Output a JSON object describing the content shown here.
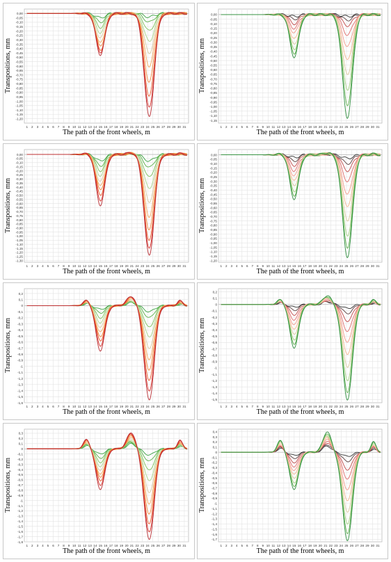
{
  "layout_note": "",
  "chart_data": [
    {
      "type": "line",
      "xlabel": "The path of the front wheels, m",
      "ylabel": "Transpositions, mm",
      "x_ticks": [
        "1",
        "2",
        "3",
        "4",
        "5",
        "6",
        "7",
        "8",
        "9",
        "10",
        "11",
        "12",
        "13",
        "14",
        "15",
        "16",
        "17",
        "18",
        "19",
        "20",
        "21",
        "22",
        "23",
        "24",
        "25",
        "26",
        "27",
        "28",
        "29",
        "30",
        "31"
      ],
      "ylim": [
        -1.25,
        0.05
      ],
      "y_ticks": [
        "0,00",
        "-0,05",
        "-0,10",
        "-0,15",
        "-0,20",
        "-0,25",
        "-0,30",
        "-0,35",
        "-0,40",
        "-0,45",
        "-0,50",
        "-0,55",
        "-0,60",
        "-0,65",
        "-0,70",
        "-0,75",
        "-0,80",
        "-0,85",
        "-0,90",
        "-0,95",
        "-1,00",
        "-1,05",
        "-1,10",
        "-1,15",
        "-1,20"
      ],
      "dip1_x": 15,
      "dip2_x": 24.3,
      "dip1_depths": [
        -0.05,
        -0.1,
        -0.16,
        -0.22,
        -0.28,
        -0.34,
        -0.38,
        -0.42,
        -0.44,
        -0.47
      ],
      "dip2_depths": [
        -0.04,
        -0.1,
        -0.2,
        -0.32,
        -0.45,
        -0.6,
        -0.78,
        -0.95,
        -1.08,
        -1.18
      ],
      "hump": 0.0,
      "colors": [
        "#3aa142",
        "#58b048",
        "#7cc15a",
        "#a9d48a",
        "#d9c9a0",
        "#f3a95e",
        "#f08a3f",
        "#ea5a2a",
        "#d8302a",
        "#b82c32"
      ]
    },
    {
      "type": "line",
      "xlabel": "The path of the front wheels, m",
      "ylabel": "Transpositions, mm",
      "x_ticks": [
        "1",
        "2",
        "3",
        "4",
        "5",
        "6",
        "7",
        "8",
        "9",
        "10",
        "11",
        "12",
        "13",
        "14",
        "15",
        "16",
        "17",
        "18",
        "19",
        "20",
        "21",
        "22",
        "23",
        "24",
        "25",
        "26",
        "27",
        "28",
        "29",
        "30",
        "31"
      ],
      "ylim": [
        -1.18,
        0.06
      ],
      "y_ticks": [
        "0,00",
        "-0,05",
        "-0,10",
        "-0,15",
        "-0,20",
        "-0,25",
        "-0,30",
        "-0,35",
        "-0,40",
        "-0,45",
        "-0,50",
        "-0,55",
        "-0,60",
        "-0,65",
        "-0,70",
        "-0,75",
        "-0,80",
        "-0,85",
        "-0,90",
        "-0,95",
        "-1,00",
        "-1,05",
        "-1,10",
        "-1,15"
      ],
      "dip1_x": 15,
      "dip2_x": 25.2,
      "dip1_depths": [
        -0.02,
        -0.05,
        -0.1,
        -0.15,
        -0.2,
        -0.27,
        -0.33,
        -0.38,
        -0.42,
        -0.46
      ],
      "dip2_depths": [
        -0.02,
        -0.06,
        -0.12,
        -0.22,
        -0.35,
        -0.5,
        -0.66,
        -0.82,
        -0.98,
        -1.12
      ],
      "hump": 0.0,
      "colors": [
        "#2f2f2f",
        "#5a3f3f",
        "#c24a4a",
        "#e06b6b",
        "#f29a8a",
        "#f4b58f",
        "#d8c79c",
        "#9fcf7f",
        "#5cb04c",
        "#2f8e3f"
      ]
    },
    {
      "type": "line",
      "xlabel": "The path of the front wheels, m",
      "ylabel": "Transpositions, mm",
      "x_ticks": [
        "1",
        "2",
        "3",
        "4",
        "5",
        "6",
        "7",
        "8",
        "9",
        "10",
        "11",
        "12",
        "13",
        "14",
        "15",
        "16",
        "17",
        "18",
        "19",
        "20",
        "21",
        "22",
        "23",
        "24",
        "25",
        "26",
        "27",
        "28",
        "29",
        "30",
        "31"
      ],
      "ylim": [
        -1.32,
        0.06
      ],
      "y_ticks": [
        "0,00",
        "-0,05",
        "-0,10",
        "-0,15",
        "-0,20",
        "-0,25",
        "-0,30",
        "-0,35",
        "-0,40",
        "-0,45",
        "-0,50",
        "-0,55",
        "-0,60",
        "-0,65",
        "-0,70",
        "-0,75",
        "-0,80",
        "-0,85",
        "-0,90",
        "-0,95",
        "-1,00",
        "-1,05",
        "-1,10",
        "-1,15",
        "-1,20",
        "-1,25",
        "-1,30"
      ],
      "dip1_x": 15,
      "dip2_x": 24.3,
      "dip1_depths": [
        -0.08,
        -0.14,
        -0.2,
        -0.26,
        -0.33,
        -0.39,
        -0.44,
        -0.5,
        -0.56,
        -0.62
      ],
      "dip2_depths": [
        -0.08,
        -0.16,
        -0.28,
        -0.42,
        -0.58,
        -0.76,
        -0.92,
        -1.06,
        -1.16,
        -1.24
      ],
      "hump": 0.02,
      "colors": [
        "#3aa142",
        "#58b048",
        "#7cc15a",
        "#a9d48a",
        "#d9c9a0",
        "#f3a95e",
        "#f08a3f",
        "#ea5a2a",
        "#d8302a",
        "#b82c32"
      ]
    },
    {
      "type": "line",
      "xlabel": "The path of the front wheels, m",
      "ylabel": "Transpositions, mm",
      "x_ticks": [
        "1",
        "2",
        "3",
        "4",
        "5",
        "6",
        "7",
        "8",
        "9",
        "10",
        "11",
        "12",
        "13",
        "14",
        "15",
        "16",
        "17",
        "18",
        "19",
        "20",
        "21",
        "22",
        "23",
        "24",
        "25",
        "26",
        "27",
        "28",
        "29",
        "30",
        "31"
      ],
      "ylim": [
        -1.22,
        0.06
      ],
      "y_ticks": [
        "0,00",
        "-0,05",
        "-0,10",
        "-0,15",
        "-0,20",
        "-0,25",
        "-0,30",
        "-0,35",
        "-0,40",
        "-0,45",
        "-0,50",
        "-0,55",
        "-0,60",
        "-0,65",
        "-0,70",
        "-0,75",
        "-0,80",
        "-0,85",
        "-0,90",
        "-0,95",
        "-1,00",
        "-1,05",
        "-1,10",
        "-1,15",
        "-1,20"
      ],
      "dip1_x": 15,
      "dip2_x": 25.2,
      "dip1_depths": [
        -0.03,
        -0.07,
        -0.12,
        -0.18,
        -0.24,
        -0.3,
        -0.36,
        -0.42,
        -0.46,
        -0.5
      ],
      "dip2_depths": [
        -0.04,
        -0.1,
        -0.18,
        -0.3,
        -0.45,
        -0.6,
        -0.76,
        -0.92,
        -1.05,
        -1.16
      ],
      "hump": 0.02,
      "colors": [
        "#2f2f2f",
        "#5a3f3f",
        "#c24a4a",
        "#e06b6b",
        "#f29a8a",
        "#f4b58f",
        "#d8c79c",
        "#9fcf7f",
        "#5cb04c",
        "#2f8e3f"
      ]
    },
    {
      "type": "line",
      "xlabel": "The path of the front wheels, m",
      "ylabel": "Transpositions, mm",
      "x_ticks": [
        "1",
        "2",
        "3",
        "4",
        "5",
        "6",
        "7",
        "8",
        "9",
        "10",
        "11",
        "12",
        "13",
        "14",
        "15",
        "16",
        "17",
        "18",
        "19",
        "20",
        "21",
        "22",
        "23",
        "24",
        "25",
        "26",
        "27",
        "28",
        "29",
        "30",
        "31"
      ],
      "ylim": [
        -1.6,
        0.28
      ],
      "y_ticks": [
        "0,2",
        "0,1",
        "0",
        "-0,1",
        "-0,2",
        "-0,3",
        "-0,4",
        "-0,5",
        "-0,6",
        "-0,7",
        "-0,8",
        "-0,9",
        "-1",
        "-1,1",
        "-1,2",
        "-1,3",
        "-1,4",
        "-1,5",
        "-1,6"
      ],
      "dip1_x": 15,
      "dip2_x": 24.3,
      "dip1_depths": [
        -0.06,
        -0.12,
        -0.2,
        -0.28,
        -0.36,
        -0.44,
        -0.52,
        -0.58,
        -0.66,
        -0.74
      ],
      "dip2_depths": [
        -0.1,
        -0.2,
        -0.36,
        -0.52,
        -0.7,
        -0.88,
        -1.06,
        -1.24,
        -1.42,
        -1.56
      ],
      "hump": 0.16,
      "colors": [
        "#3aa142",
        "#58b048",
        "#7cc15a",
        "#a9d48a",
        "#d9c9a0",
        "#f3a95e",
        "#f08a3f",
        "#ea5a2a",
        "#d8302a",
        "#b82c32"
      ]
    },
    {
      "type": "line",
      "xlabel": "The path of the front wheels, m",
      "ylabel": "Transpositions, mm",
      "x_ticks": [
        "1",
        "2",
        "3",
        "4",
        "5",
        "6",
        "7",
        "8",
        "9",
        "10",
        "11",
        "12",
        "13",
        "14",
        "15",
        "16",
        "17",
        "18",
        "19",
        "20",
        "21",
        "22",
        "23",
        "24",
        "25",
        "26",
        "27",
        "28",
        "29",
        "30",
        "31"
      ],
      "ylim": [
        -1.55,
        0.25
      ],
      "y_ticks": [
        "0,2",
        "0,1",
        "0",
        "-0,1",
        "-0,2",
        "-0,3",
        "-0,4",
        "-0,5",
        "-0,6",
        "-0,7",
        "-0,8",
        "-0,9",
        "-1",
        "-1,1",
        "-1,2",
        "-1,3",
        "-1,4",
        "-1,5"
      ],
      "dip1_x": 15,
      "dip2_x": 25.2,
      "dip1_depths": [
        -0.04,
        -0.09,
        -0.16,
        -0.24,
        -0.32,
        -0.4,
        -0.48,
        -0.56,
        -0.62,
        -0.68
      ],
      "dip2_depths": [
        -0.06,
        -0.14,
        -0.26,
        -0.42,
        -0.6,
        -0.8,
        -1.0,
        -1.2,
        -1.38,
        -1.5
      ],
      "hump": 0.14,
      "colors": [
        "#2f2f2f",
        "#5a3f3f",
        "#c24a4a",
        "#e06b6b",
        "#f29a8a",
        "#f4b58f",
        "#d8c79c",
        "#9fcf7f",
        "#5cb04c",
        "#2f8e3f"
      ]
    },
    {
      "type": "line",
      "xlabel": "The path of the front wheels, m",
      "ylabel": "Transpositions, mm",
      "x_ticks": [
        "1",
        "2",
        "3",
        "4",
        "5",
        "6",
        "7",
        "8",
        "9",
        "10",
        "11",
        "12",
        "13",
        "14",
        "15",
        "16",
        "17",
        "18",
        "19",
        "20",
        "21",
        "22",
        "23",
        "24",
        "25",
        "26",
        "27",
        "28",
        "29",
        "30",
        "31"
      ],
      "ylim": [
        -1.8,
        0.38
      ],
      "y_ticks": [
        "0,3",
        "0,2",
        "0,1",
        "0",
        "-0,1",
        "-0,2",
        "-0,3",
        "-0,4",
        "-0,5",
        "-0,6",
        "-0,7",
        "-0,8",
        "-0,9",
        "-1",
        "-1,1",
        "-1,2",
        "-1,3",
        "-1,4",
        "-1,5",
        "-1,6",
        "-1,7",
        "-1,8"
      ],
      "dip1_x": 15,
      "dip2_x": 24.3,
      "dip1_depths": [
        -0.1,
        -0.18,
        -0.26,
        -0.34,
        -0.42,
        -0.5,
        -0.56,
        -0.62,
        -0.7,
        -0.78
      ],
      "dip2_depths": [
        -0.12,
        -0.24,
        -0.42,
        -0.62,
        -0.84,
        -1.06,
        -1.26,
        -1.46,
        -1.62,
        -1.76
      ],
      "hump": 0.32,
      "colors": [
        "#3aa142",
        "#58b048",
        "#7cc15a",
        "#a9d48a",
        "#d9c9a0",
        "#f3a95e",
        "#f08a3f",
        "#ea5a2a",
        "#d8302a",
        "#b82c32"
      ]
    },
    {
      "type": "line",
      "xlabel": "The path of the front wheels, m",
      "ylabel": "Transpositions, mm",
      "x_ticks": [
        "1",
        "2",
        "3",
        "4",
        "5",
        "6",
        "7",
        "8",
        "9",
        "10",
        "11",
        "12",
        "13",
        "14",
        "15",
        "16",
        "17",
        "18",
        "19",
        "20",
        "21",
        "22",
        "23",
        "24",
        "25",
        "26",
        "27",
        "28",
        "29",
        "30",
        "31"
      ],
      "ylim": [
        -1.75,
        0.45
      ],
      "y_ticks": [
        "0,4",
        "0,3",
        "0,2",
        "0,1",
        "0",
        "-0,1",
        "-0,2",
        "-0,3",
        "-0,4",
        "-0,5",
        "-0,6",
        "-0,7",
        "-0,8",
        "-0,9",
        "-1",
        "-1,1",
        "-1,2",
        "-1,3",
        "-1,4",
        "-1,5",
        "-1,6",
        "-1,7"
      ],
      "dip1_x": 15,
      "dip2_x": 25.2,
      "dip1_depths": [
        -0.06,
        -0.12,
        -0.2,
        -0.28,
        -0.36,
        -0.44,
        -0.52,
        -0.6,
        -0.66,
        -0.72
      ],
      "dip2_depths": [
        -0.08,
        -0.18,
        -0.34,
        -0.52,
        -0.74,
        -0.96,
        -1.18,
        -1.4,
        -1.58,
        -1.72
      ],
      "hump": 0.4,
      "colors": [
        "#2f2f2f",
        "#5a3f3f",
        "#c24a4a",
        "#e06b6b",
        "#f29a8a",
        "#f4b58f",
        "#d8c79c",
        "#9fcf7f",
        "#5cb04c",
        "#2f8e3f"
      ]
    }
  ]
}
